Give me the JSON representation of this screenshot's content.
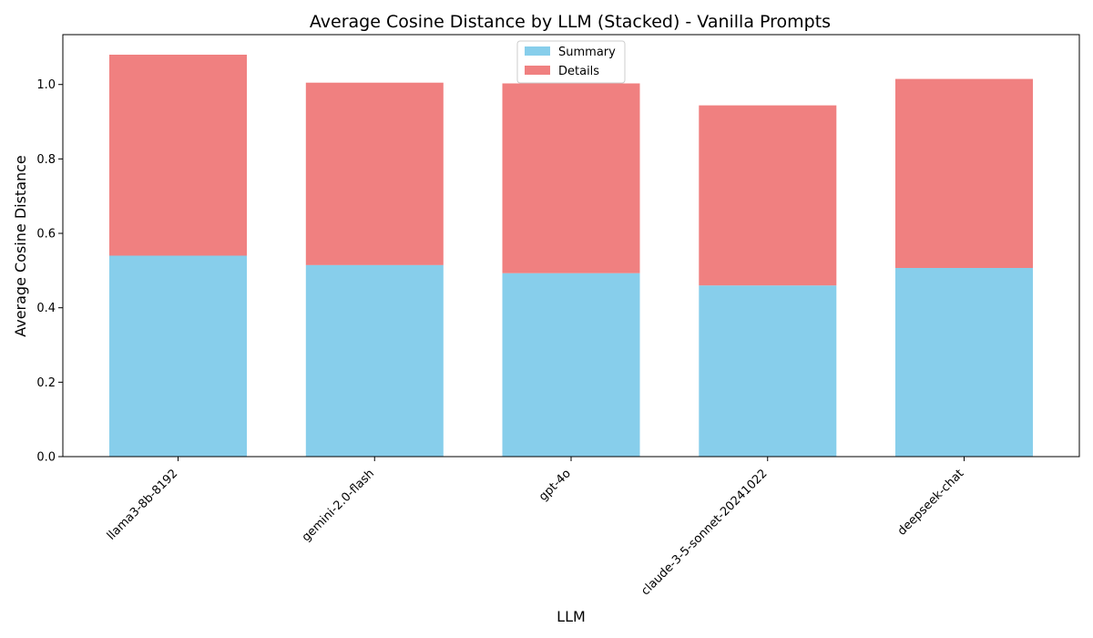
{
  "chart_data": {
    "type": "bar",
    "stacked": true,
    "title": "Average Cosine Distance by LLM (Stacked) - Vanilla Prompts",
    "xlabel": "LLM",
    "ylabel": "Average Cosine Distance",
    "categories": [
      "llama3-8b-8192",
      "gemini-2.0-flash",
      "gpt-4o",
      "claude-3-5-sonnet-20241022",
      "deepseek-chat"
    ],
    "series": [
      {
        "name": "Summary",
        "color": "#87CEEB",
        "values": [
          0.54,
          0.515,
          0.493,
          0.46,
          0.507
        ]
      },
      {
        "name": "Details",
        "color": "#F08080",
        "values": [
          0.54,
          0.49,
          0.51,
          0.484,
          0.508
        ]
      }
    ],
    "ylim": [
      0,
      1.134
    ],
    "yticks": [
      "0.0",
      "0.2",
      "0.4",
      "0.6",
      "0.8",
      "1.0"
    ],
    "grid": false,
    "legend_position": "top-center"
  }
}
